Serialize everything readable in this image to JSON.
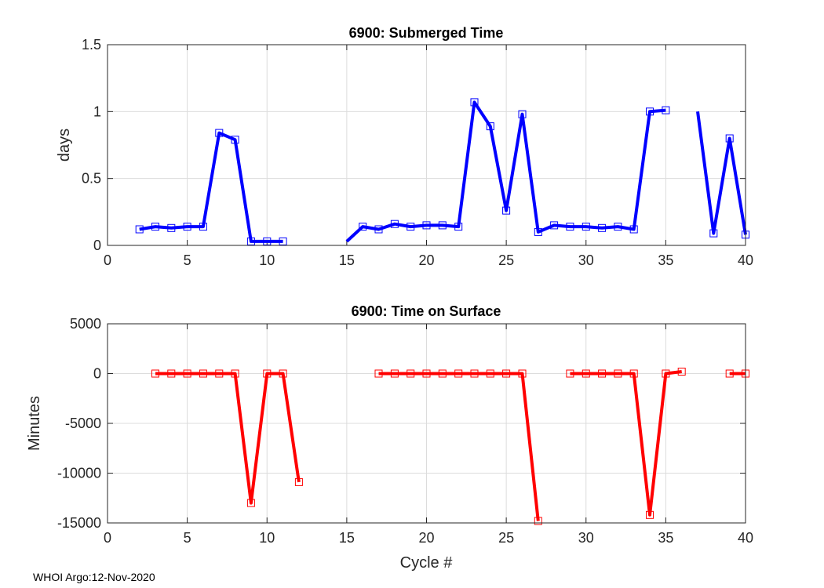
{
  "footer_text": "WHOI Argo:12-Nov-2020",
  "chart_data": [
    {
      "type": "line",
      "title": "6900: Submerged Time",
      "xlabel": "",
      "ylabel": "days",
      "xlim": [
        0,
        40
      ],
      "ylim": [
        0,
        1.5
      ],
      "xticks": [
        0,
        5,
        10,
        15,
        20,
        25,
        30,
        35,
        40
      ],
      "yticks": [
        0,
        0.5,
        1,
        1.5
      ],
      "xtick_labels": [
        "0",
        "5",
        "10",
        "15",
        "20",
        "25",
        "30",
        "35",
        "40"
      ],
      "ytick_labels": [
        "0",
        "0.5",
        "1",
        "1.5"
      ],
      "grid": true,
      "color": "#0000ff",
      "series": [
        {
          "name": "submerged",
          "x": [
            2,
            3,
            4,
            5,
            6,
            7,
            8,
            9,
            10,
            11,
            12,
            13,
            14,
            15,
            16,
            17,
            18,
            19,
            20,
            21,
            22,
            23,
            24,
            25,
            26,
            27,
            28,
            29,
            30,
            31,
            32,
            33,
            34,
            35,
            36,
            37,
            38,
            39,
            40
          ],
          "y": [
            0.12,
            0.14,
            0.13,
            0.14,
            0.14,
            0.84,
            0.79,
            0.03,
            0.03,
            0.03,
            null,
            null,
            null,
            0.03,
            0.14,
            0.12,
            0.16,
            0.14,
            0.15,
            0.15,
            0.14,
            1.07,
            0.89,
            0.26,
            0.98,
            0.1,
            0.15,
            0.14,
            0.14,
            0.13,
            0.14,
            0.12,
            1.0,
            1.01,
            null,
            1.0,
            0.09,
            0.8,
            0.08
          ],
          "markers": [
            true,
            true,
            true,
            true,
            true,
            true,
            true,
            true,
            true,
            true,
            false,
            false,
            false,
            false,
            true,
            true,
            true,
            true,
            true,
            true,
            true,
            true,
            true,
            true,
            true,
            true,
            true,
            true,
            true,
            true,
            true,
            true,
            true,
            true,
            false,
            false,
            true,
            true,
            true
          ]
        }
      ]
    },
    {
      "type": "line",
      "title": "6900: Time on Surface",
      "xlabel": "Cycle #",
      "ylabel": "Minutes",
      "xlim": [
        0,
        40
      ],
      "ylim": [
        -15000,
        5000
      ],
      "xticks": [
        0,
        5,
        10,
        15,
        20,
        25,
        30,
        35,
        40
      ],
      "yticks": [
        -15000,
        -10000,
        -5000,
        0,
        5000
      ],
      "xtick_labels": [
        "0",
        "5",
        "10",
        "15",
        "20",
        "25",
        "30",
        "35",
        "40"
      ],
      "ytick_labels": [
        "-15000",
        "-10000",
        "-5000",
        "0",
        "5000"
      ],
      "grid": true,
      "color": "#ff0000",
      "series": [
        {
          "name": "surface",
          "x": [
            3,
            4,
            5,
            6,
            7,
            8,
            9,
            10,
            11,
            12,
            13,
            14,
            15,
            16,
            17,
            18,
            19,
            20,
            21,
            22,
            23,
            24,
            25,
            26,
            27,
            28,
            29,
            30,
            31,
            32,
            33,
            34,
            35,
            36,
            37,
            38,
            39,
            40
          ],
          "y": [
            0,
            0,
            0,
            0,
            0,
            0,
            -13000,
            0,
            0,
            -10900,
            null,
            null,
            null,
            null,
            0,
            0,
            0,
            0,
            0,
            0,
            0,
            0,
            0,
            0,
            -14800,
            null,
            0,
            0,
            0,
            0,
            0,
            -14200,
            0,
            200,
            null,
            null,
            0,
            0
          ],
          "markers": [
            true,
            true,
            true,
            true,
            true,
            true,
            true,
            true,
            true,
            true,
            false,
            false,
            false,
            false,
            true,
            true,
            true,
            true,
            true,
            true,
            true,
            true,
            true,
            true,
            true,
            false,
            true,
            true,
            true,
            true,
            true,
            true,
            true,
            true,
            false,
            false,
            true,
            true
          ]
        }
      ]
    }
  ]
}
